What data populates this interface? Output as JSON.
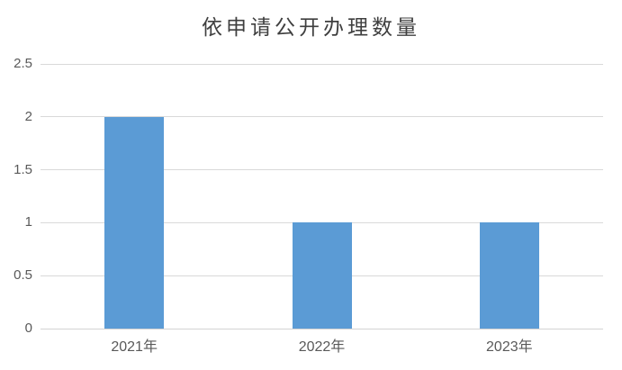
{
  "chart_data": {
    "type": "bar",
    "title": "依申请公开办理数量",
    "categories": [
      "2021年",
      "2022年",
      "2023年"
    ],
    "values": [
      2,
      1,
      1
    ],
    "xlabel": "",
    "ylabel": "",
    "ylim": [
      0,
      2.5
    ],
    "ytick_step": 0.5,
    "ytick_labels": [
      "0",
      "0.5",
      "1",
      "1.5",
      "2",
      "2.5"
    ],
    "grid": "horizontal",
    "legend": "none",
    "data_labels": "none",
    "colors": {
      "bar": "#5B9BD5",
      "gridline": "#D9D9D9",
      "axis_line": "#D3D3D3",
      "title_text": "#3F3F3F",
      "tick_text": "#595959",
      "background": "#FFFFFF"
    }
  }
}
